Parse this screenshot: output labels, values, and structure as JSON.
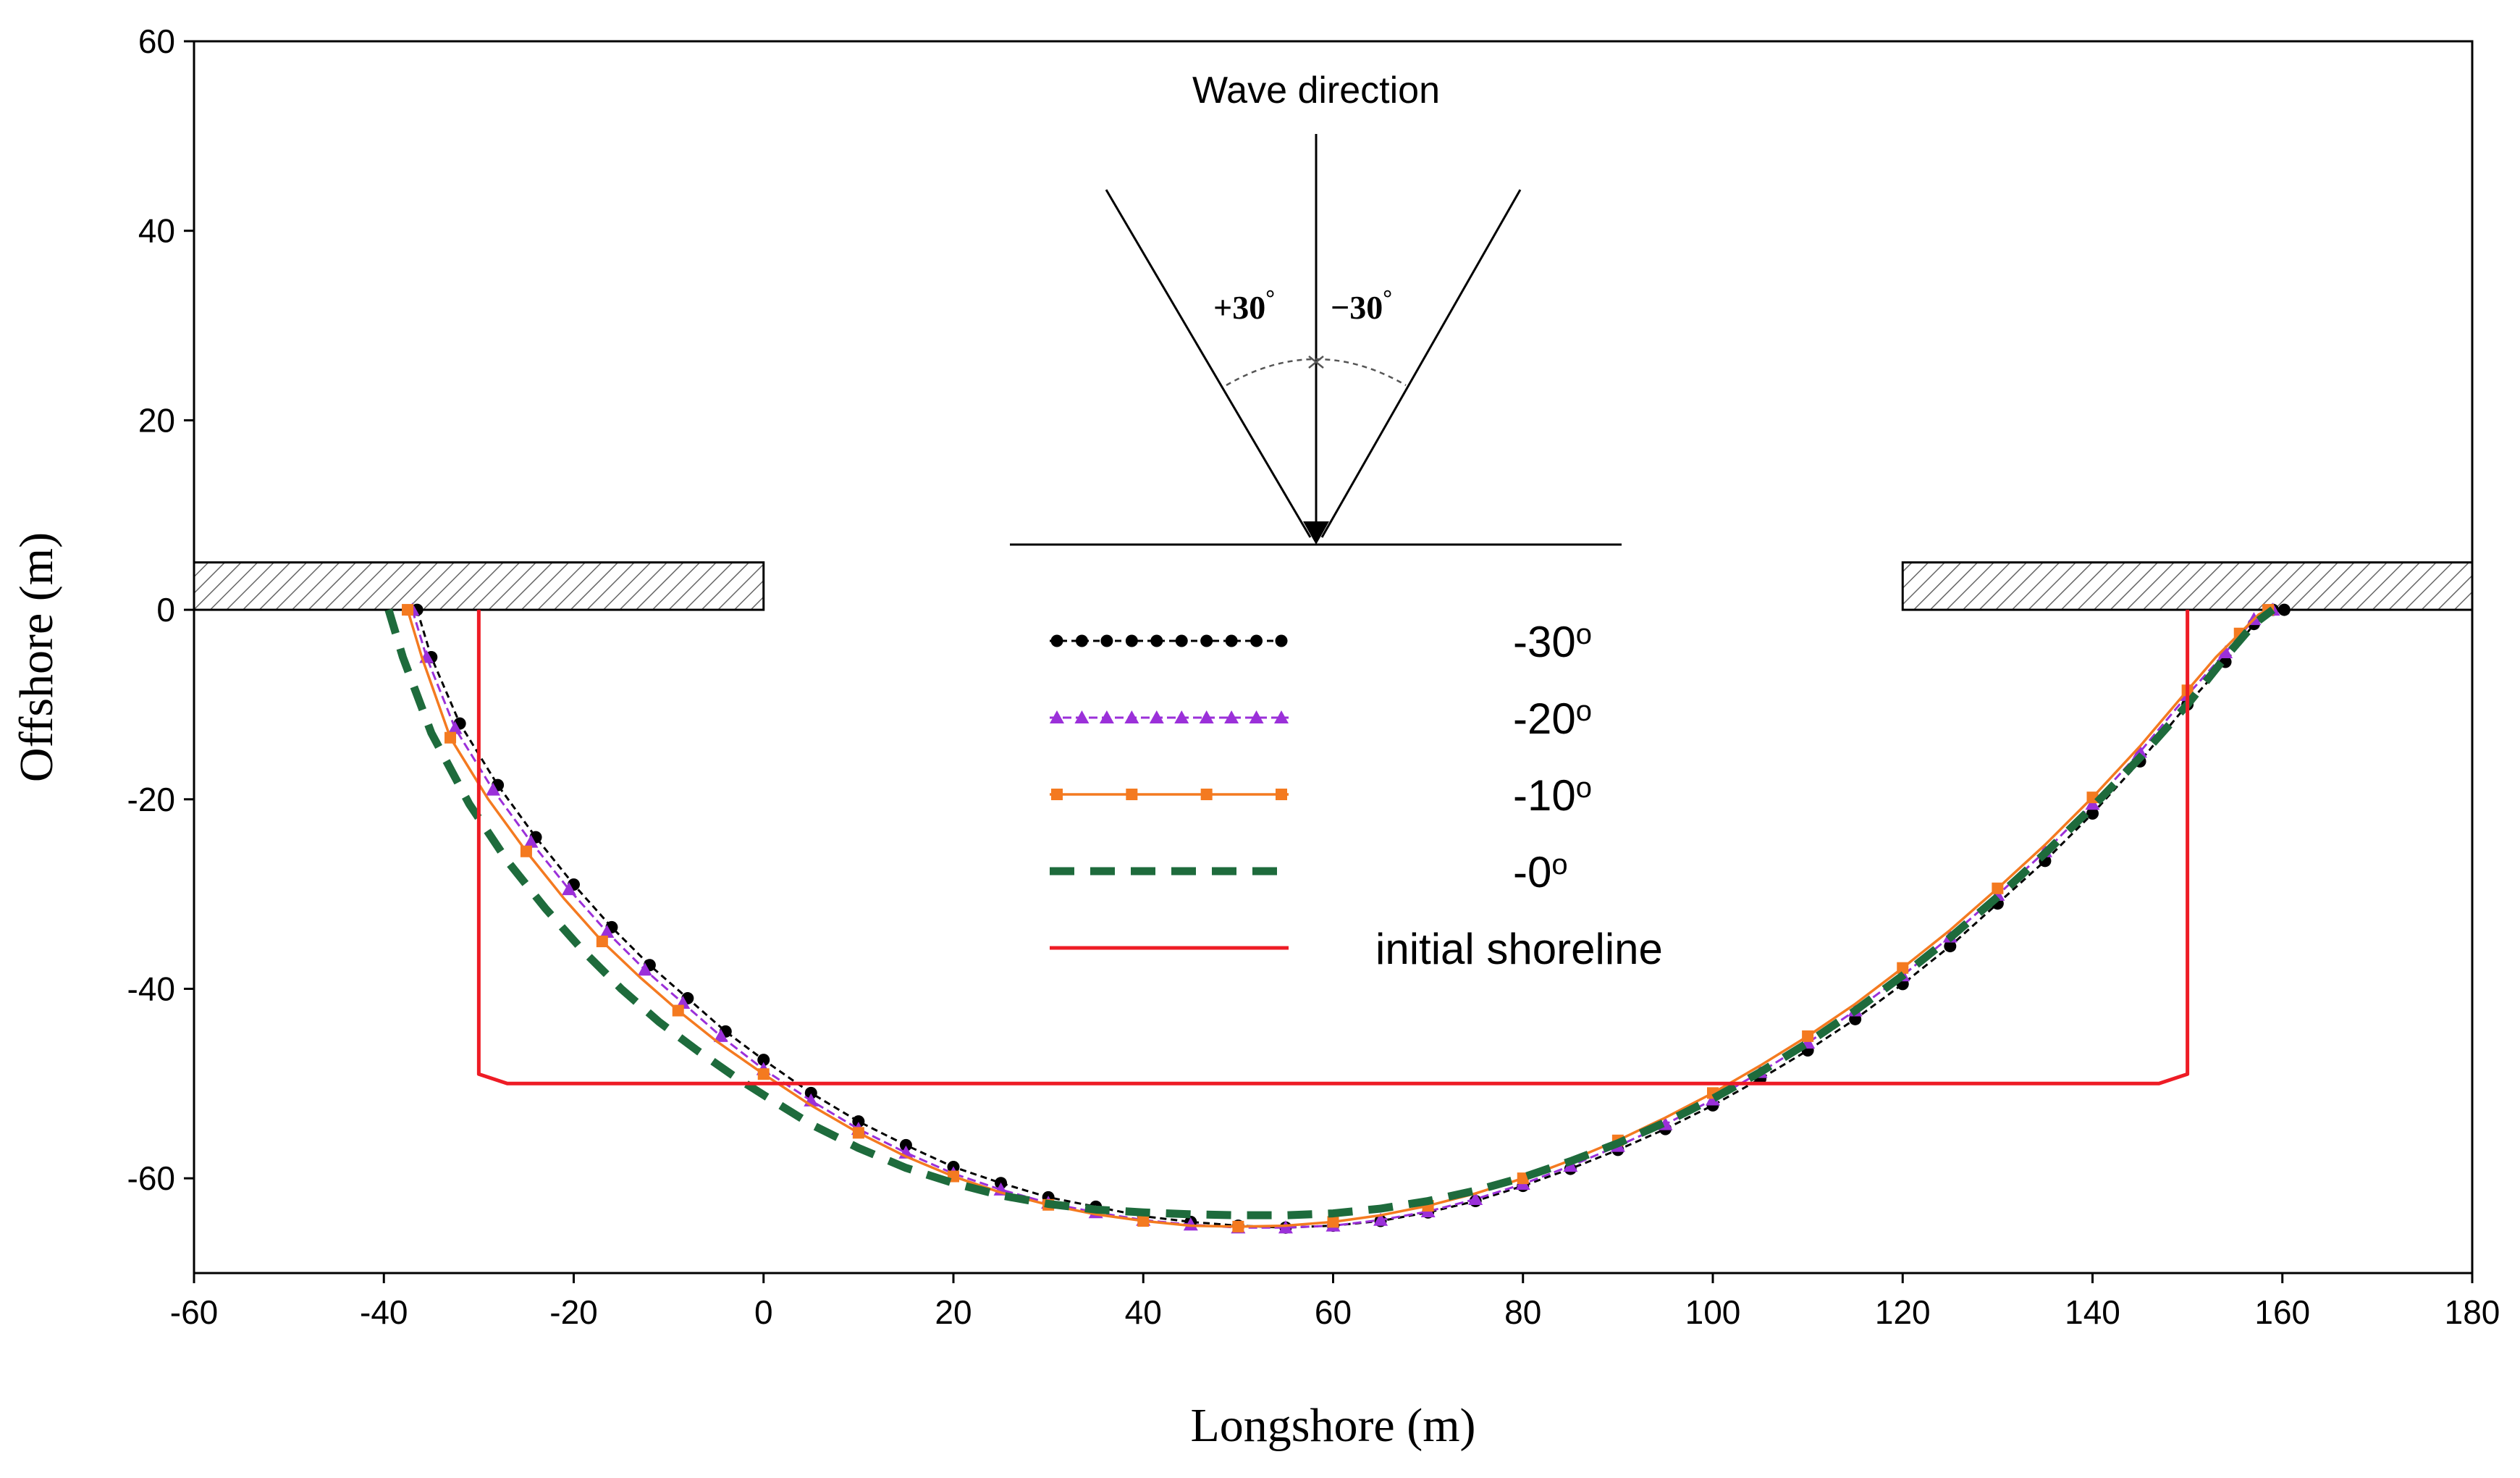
{
  "chart_data": {
    "type": "line",
    "title": "",
    "xlabel": "Longshore (m)",
    "ylabel": "Offshore (m)",
    "xlim": [
      -60,
      180
    ],
    "ylim": [
      -70,
      60
    ],
    "xticks": [
      "-60",
      "-40",
      "-20",
      "0",
      "20",
      "40",
      "60",
      "80",
      "100",
      "120",
      "140",
      "160",
      "180"
    ],
    "yticks": [
      "60",
      "40",
      "20",
      "0",
      "-20",
      "-40",
      "-60"
    ],
    "grid": false,
    "legend_position": "center",
    "annotation": {
      "title": "Wave direction",
      "left_angle": "+30",
      "right_angle": "−30",
      "degree_mark": "°"
    },
    "structures": [
      {
        "x": [
          -60,
          0
        ],
        "y": [
          0,
          5
        ]
      },
      {
        "x": [
          120,
          180
        ],
        "y": [
          0,
          5
        ]
      }
    ],
    "series": [
      {
        "label": "-30",
        "label_sup": "o",
        "color": "#000000",
        "style": "dotted-circle",
        "x": [
          -36.5,
          -35,
          -32,
          -28,
          -24,
          -20,
          -16,
          -12,
          -8,
          -4,
          0,
          5,
          10,
          15,
          20,
          25,
          30,
          35,
          40,
          45,
          50,
          55,
          60,
          65,
          70,
          75,
          80,
          85,
          90,
          95,
          100,
          105,
          110,
          115,
          120,
          125,
          130,
          135,
          140,
          145,
          150,
          154,
          157,
          159,
          160.2
        ],
        "y": [
          0,
          -5,
          -12,
          -18.5,
          -24,
          -29,
          -33.5,
          -37.5,
          -41,
          -44.5,
          -47.5,
          -51,
          -54,
          -56.5,
          -58.8,
          -60.5,
          -62,
          -63,
          -64,
          -64.6,
          -65,
          -65.2,
          -65,
          -64.5,
          -63.6,
          -62.4,
          -60.8,
          -59,
          -57,
          -54.8,
          -52.3,
          -49.5,
          -46.5,
          -43.2,
          -39.5,
          -35.5,
          -31,
          -26.5,
          -21.5,
          -16,
          -10,
          -5.5,
          -1.5,
          0,
          0
        ]
      },
      {
        "label": "-20",
        "label_sup": "o",
        "color": "#9b30d9",
        "style": "dashed-triangle",
        "x": [
          -37,
          -35.5,
          -32.5,
          -28.5,
          -24.5,
          -20.5,
          -16.5,
          -12.5,
          -8.5,
          -4.5,
          0,
          5,
          10,
          15,
          20,
          25,
          30,
          35,
          40,
          45,
          50,
          55,
          60,
          65,
          70,
          75,
          80,
          85,
          90,
          95,
          100,
          105,
          110,
          115,
          120,
          125,
          130,
          135,
          140,
          145,
          150,
          154,
          157,
          159
        ],
        "y": [
          0,
          -5,
          -12.5,
          -19,
          -24.5,
          -29.5,
          -34,
          -38,
          -41.5,
          -45,
          -48.5,
          -51.8,
          -54.8,
          -57.3,
          -59.5,
          -61.2,
          -62.6,
          -63.6,
          -64.4,
          -64.9,
          -65.2,
          -65.2,
          -65,
          -64.4,
          -63.5,
          -62.2,
          -60.6,
          -58.7,
          -56.6,
          -54.3,
          -51.7,
          -48.8,
          -45.7,
          -42.3,
          -38.6,
          -34.5,
          -30.1,
          -25.5,
          -20.5,
          -15,
          -9,
          -4.5,
          -1,
          0
        ]
      },
      {
        "label": "-10",
        "label_sup": "o",
        "color": "#f47a20",
        "style": "solid-square",
        "x": [
          -37.5,
          -36,
          -33,
          -29,
          -25,
          -21,
          -17,
          -13,
          -9,
          -5,
          0,
          5,
          10,
          15,
          20,
          25,
          30,
          35,
          40,
          45,
          50,
          55,
          60,
          65,
          70,
          75,
          80,
          85,
          90,
          95,
          100,
          105,
          110,
          115,
          120,
          125,
          130,
          135,
          140,
          145,
          150,
          153,
          155.5,
          157.5,
          158.5
        ],
        "y": [
          0,
          -5,
          -13.5,
          -20,
          -25.5,
          -30.5,
          -35,
          -38.8,
          -42.3,
          -45.5,
          -49,
          -52.3,
          -55.2,
          -57.7,
          -59.8,
          -61.5,
          -62.8,
          -63.8,
          -64.5,
          -65,
          -65.1,
          -65,
          -64.6,
          -63.9,
          -62.9,
          -61.6,
          -60,
          -58.1,
          -56,
          -53.6,
          -51,
          -48.1,
          -45,
          -41.6,
          -37.8,
          -33.8,
          -29.4,
          -24.8,
          -19.8,
          -14.4,
          -8.5,
          -5,
          -2.5,
          -0.5,
          0
        ]
      },
      {
        "label": "-0",
        "label_sup": "o",
        "color": "#1e6b3c",
        "style": "thick-dash",
        "x": [
          -39.5,
          -38,
          -35,
          -31,
          -27,
          -23,
          -19,
          -15,
          -11,
          -7,
          -3,
          0,
          5,
          10,
          15,
          20,
          25,
          30,
          35,
          40,
          45,
          50,
          55,
          60,
          65,
          70,
          75,
          80,
          85,
          90,
          95,
          100,
          105,
          110,
          115,
          120,
          125,
          130,
          135,
          140,
          145,
          150,
          154,
          157,
          159
        ],
        "y": [
          0,
          -5,
          -13,
          -20.5,
          -26.5,
          -31.5,
          -36,
          -40,
          -43.5,
          -46.5,
          -49.3,
          -51.2,
          -54.3,
          -56.8,
          -58.9,
          -60.5,
          -61.8,
          -62.7,
          -63.3,
          -63.6,
          -63.8,
          -63.9,
          -63.9,
          -63.7,
          -63.2,
          -62.4,
          -61.3,
          -59.9,
          -58.2,
          -56.3,
          -54.1,
          -51.6,
          -48.8,
          -45.7,
          -42.3,
          -38.6,
          -34.6,
          -30.3,
          -25.7,
          -20.8,
          -15.6,
          -10,
          -5,
          -1.5,
          0
        ]
      },
      {
        "label": "initial shoreline",
        "label_sup": "",
        "color": "#ee1c25",
        "style": "solid",
        "x": [
          -30,
          -30,
          -27,
          147,
          150,
          150
        ],
        "y": [
          0,
          -49,
          -50,
          -50,
          -49,
          0
        ]
      }
    ]
  }
}
